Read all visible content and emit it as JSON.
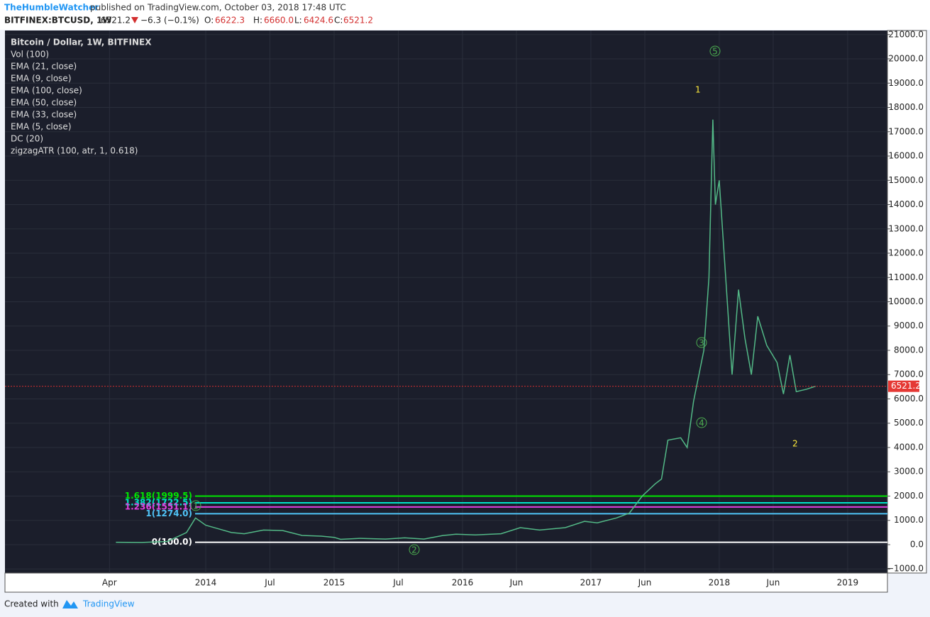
{
  "header": {
    "author": "TheHumbleWatcher",
    "published": " published on TradingView.com, October 03, 2018 17:48 UTC",
    "symbol": "BITFINEX:BTCUSD, 1W",
    "last": "6521.2",
    "change": "−6.3 (−0.1%)",
    "o_label": "O:",
    "open": "6622.3",
    "h_label": "H:",
    "high": "6660.0",
    "l_label": "L:",
    "low": "6424.6",
    "c_label": "C:",
    "close": "6521.2"
  },
  "legend": {
    "title": "Bitcoin / Dollar, 1W, BITFINEX",
    "indicators": [
      "Vol (100)",
      "EMA (21, close)",
      "EMA (9, close)",
      "EMA (100, close)",
      "EMA (50, close)",
      "EMA (33, close)",
      "EMA (5, close)",
      "DC (20)",
      "zigzagATR (100, atr, 1, 0.618)"
    ]
  },
  "footer": {
    "created": "Created with",
    "brand": "TradingView"
  },
  "chart_data": {
    "type": "line",
    "series": [
      {
        "name": "BTCUSD",
        "color": "#53b987",
        "x": [
          2013.3,
          2013.5,
          2013.7,
          2013.85,
          2013.92,
          2014.0,
          2014.1,
          2014.2,
          2014.3,
          2014.45,
          2014.6,
          2014.75,
          2014.9,
          2015.0,
          2015.05,
          2015.2,
          2015.4,
          2015.55,
          2015.7,
          2015.85,
          2015.95,
          2016.1,
          2016.3,
          2016.45,
          2016.6,
          2016.8,
          2016.95,
          2017.05,
          2017.2,
          2017.3,
          2017.4,
          2017.5,
          2017.55,
          2017.6,
          2017.7,
          2017.75,
          2017.8,
          2017.88,
          2017.92,
          2017.95,
          2017.97,
          2018.0,
          2018.05,
          2018.1,
          2018.15,
          2018.2,
          2018.25,
          2018.3,
          2018.37,
          2018.45,
          2018.5,
          2018.55,
          2018.6,
          2018.68,
          2018.75
        ],
        "values": [
          100,
          90,
          130,
          500,
          1100,
          800,
          650,
          500,
          450,
          600,
          580,
          380,
          350,
          300,
          220,
          260,
          230,
          280,
          230,
          380,
          430,
          400,
          450,
          700,
          600,
          700,
          960,
          900,
          1100,
          1300,
          2000,
          2500,
          2700,
          4300,
          4400,
          4000,
          5900,
          8000,
          11000,
          17500,
          14000,
          15000,
          11000,
          7000,
          10500,
          8500,
          7000,
          9400,
          8200,
          7500,
          6200,
          7800,
          6300,
          6400,
          6521.2
        ]
      }
    ],
    "fib_levels": [
      {
        "label": "1.618(1999.5)",
        "value": 1999.5,
        "color": "#00e600"
      },
      {
        "label": "1.382(1722.5)",
        "value": 1722.5,
        "color": "#00e5c8"
      },
      {
        "label": "1.236(1551.1)",
        "value": 1551.1,
        "color": "#e040e0"
      },
      {
        "label": "1(1274.0)",
        "value": 1274.0,
        "color": "#4fc3f7"
      },
      {
        "label": "0(100.0)",
        "value": 100.0,
        "color": "#ffffff"
      }
    ],
    "annotations": [
      "1",
      "2"
    ],
    "wave_labels": [
      "5",
      "3",
      "4",
      "1",
      "2"
    ],
    "xlim": [
      2012.436,
      2019.31
    ],
    "xticks": [
      {
        "value": 2013.25,
        "label": "Apr"
      },
      {
        "value": 2014.0,
        "label": "2014"
      },
      {
        "value": 2014.5,
        "label": "Jul"
      },
      {
        "value": 2015.0,
        "label": "2015"
      },
      {
        "value": 2015.5,
        "label": "Jul"
      },
      {
        "value": 2016.0,
        "label": "2016"
      },
      {
        "value": 2016.42,
        "label": "Jun"
      },
      {
        "value": 2017.0,
        "label": "2017"
      },
      {
        "value": 2017.42,
        "label": "Jun"
      },
      {
        "value": 2018.0,
        "label": "2018"
      },
      {
        "value": 2018.42,
        "label": "Jun"
      },
      {
        "value": 2019.0,
        "label": "2019"
      }
    ],
    "ylim": [
      -1168,
      21168
    ],
    "yticks": [
      {
        "value": 21000,
        "label": "21000.0"
      },
      {
        "value": 20000,
        "label": "20000.0"
      },
      {
        "value": 19000,
        "label": "19000.0"
      },
      {
        "value": 18000,
        "label": "18000.0"
      },
      {
        "value": 17000,
        "label": "17000.0"
      },
      {
        "value": 16000,
        "label": "16000.0"
      },
      {
        "value": 15000,
        "label": "15000.0"
      },
      {
        "value": 14000,
        "label": "14000.0"
      },
      {
        "value": 13000,
        "label": "13000.0"
      },
      {
        "value": 12000,
        "label": "12000.0"
      },
      {
        "value": 11000,
        "label": "11000.0"
      },
      {
        "value": 10000,
        "label": "10000.0"
      },
      {
        "value": 9000,
        "label": "9000.0"
      },
      {
        "value": 8000,
        "label": "8000.0"
      },
      {
        "value": 7000,
        "label": "7000.0"
      },
      {
        "value": 6000,
        "label": "6000.0"
      },
      {
        "value": 5000,
        "label": "5000.0"
      },
      {
        "value": 4000,
        "label": "4000.0"
      },
      {
        "value": 3000,
        "label": "3000.0"
      },
      {
        "value": 2000,
        "label": "2000.0"
      },
      {
        "value": 1000,
        "label": "1000.0"
      },
      {
        "value": 0,
        "label": "0.0"
      },
      {
        "value": -1000,
        "label": "−1000.0"
      }
    ],
    "grid": true
  }
}
